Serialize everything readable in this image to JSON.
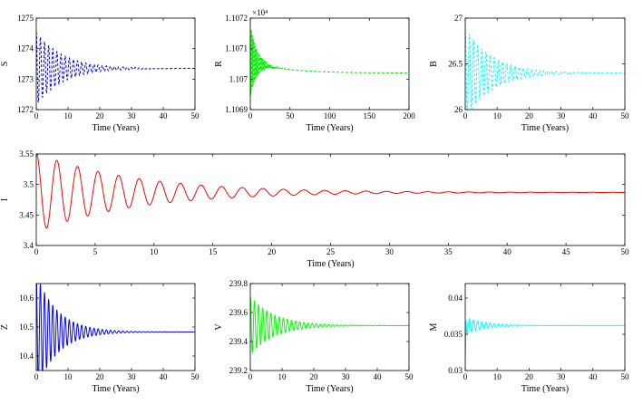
{
  "chart_data": [
    {
      "id": "S",
      "type": "line",
      "ylabel": "S",
      "xlabel": "Time (Years)",
      "xlim": [
        0,
        50
      ],
      "ylim": [
        1272,
        1275
      ],
      "xticks": [
        0,
        10,
        20,
        30,
        40,
        50
      ],
      "yticks": [
        1272,
        1273,
        1274,
        1275
      ],
      "series": [
        {
          "color": "#0000ff",
          "style": "dashed",
          "x0": 0,
          "x1": 50,
          "eq": 1273.35,
          "amp": 1.2,
          "decay": 0.12,
          "period": 1.3,
          "dt": 0.05
        }
      ]
    },
    {
      "id": "R",
      "type": "line",
      "ylabel": "R",
      "xlabel": "Time (Years)",
      "xlim": [
        0,
        200
      ],
      "ylim": [
        1.1069,
        1.1072
      ],
      "exponent": "×10⁴",
      "xticks": [
        0,
        50,
        100,
        150,
        200
      ],
      "yticks": [
        1.1069,
        1.107,
        1.1071,
        1.1072
      ],
      "yticklabels": [
        "1.1069",
        "1.107",
        "1.1071",
        "1.1072"
      ],
      "series": [
        {
          "color": "#00ee00",
          "style": "dashed",
          "x0": 0,
          "x1": 200,
          "eq": 1.10702,
          "amp": 0.00012,
          "decay": 0.12,
          "period": 1.3,
          "dt": 0.05,
          "drift": 4e-05,
          "driftTau": 40
        }
      ]
    },
    {
      "id": "B",
      "type": "line",
      "ylabel": "B",
      "xlabel": "Time (Years)",
      "xlim": [
        0,
        50
      ],
      "ylim": [
        26,
        27
      ],
      "xticks": [
        0,
        10,
        20,
        30,
        40,
        50
      ],
      "yticks": [
        26,
        26.5,
        27
      ],
      "series": [
        {
          "color": "#00ffff",
          "style": "dashed",
          "x0": 0,
          "x1": 50,
          "eq": 26.4,
          "amp": 0.5,
          "decay": 0.12,
          "period": 1.3,
          "dt": 0.05
        }
      ]
    },
    {
      "id": "I",
      "type": "line",
      "ylabel": "I",
      "xlabel": "Time (Years)",
      "xlim": [
        0,
        50
      ],
      "ylim": [
        3.4,
        3.55
      ],
      "xticks": [
        0,
        5,
        10,
        15,
        20,
        25,
        30,
        35,
        40,
        45,
        50
      ],
      "yticks": [
        3.4,
        3.45,
        3.5,
        3.55
      ],
      "series": [
        {
          "color": "#ff0000",
          "style": "solid",
          "x0": 0,
          "x1": 50,
          "eq": 3.487,
          "amp": 0.065,
          "decay": 0.12,
          "period": 1.75,
          "dt": 0.02
        }
      ]
    },
    {
      "id": "Z",
      "type": "line",
      "ylabel": "Z",
      "xlabel": "Time (Years)",
      "xlim": [
        0,
        50
      ],
      "ylim": [
        10.35,
        10.65
      ],
      "xticks": [
        0,
        10,
        20,
        30,
        40,
        50
      ],
      "yticks": [
        10.4,
        10.5,
        10.6
      ],
      "series": [
        {
          "color": "#0000ff",
          "style": "solid",
          "x0": 0,
          "x1": 50,
          "eq": 10.483,
          "amp": 0.2,
          "decay": 0.15,
          "period": 1.3,
          "dt": 0.02
        }
      ]
    },
    {
      "id": "V",
      "type": "line",
      "ylabel": "V",
      "xlabel": "Time (Years)",
      "xlim": [
        0,
        50
      ],
      "ylim": [
        239.2,
        239.8
      ],
      "xticks": [
        0,
        10,
        20,
        30,
        40,
        50
      ],
      "yticks": [
        239.2,
        239.4,
        239.6,
        239.8
      ],
      "series": [
        {
          "color": "#00ff00",
          "style": "solid",
          "x0": 0,
          "x1": 50,
          "eq": 239.51,
          "amp": 0.2,
          "decay": 0.13,
          "period": 1.3,
          "dt": 0.02
        }
      ]
    },
    {
      "id": "M",
      "type": "line",
      "ylabel": "M",
      "xlabel": "Time (Years)",
      "xlim": [
        0,
        50
      ],
      "ylim": [
        0.03,
        0.042
      ],
      "xticks": [
        0,
        10,
        20,
        30,
        40,
        50
      ],
      "yticks": [
        0.03,
        0.035,
        0.04
      ],
      "series": [
        {
          "color": "#00ffff",
          "style": "solid",
          "x0": 0,
          "x1": 50,
          "eq": 0.0362,
          "amp": 0.0012,
          "decay": 0.16,
          "period": 1.3,
          "dt": 0.02,
          "initial": 0.031
        }
      ]
    }
  ]
}
